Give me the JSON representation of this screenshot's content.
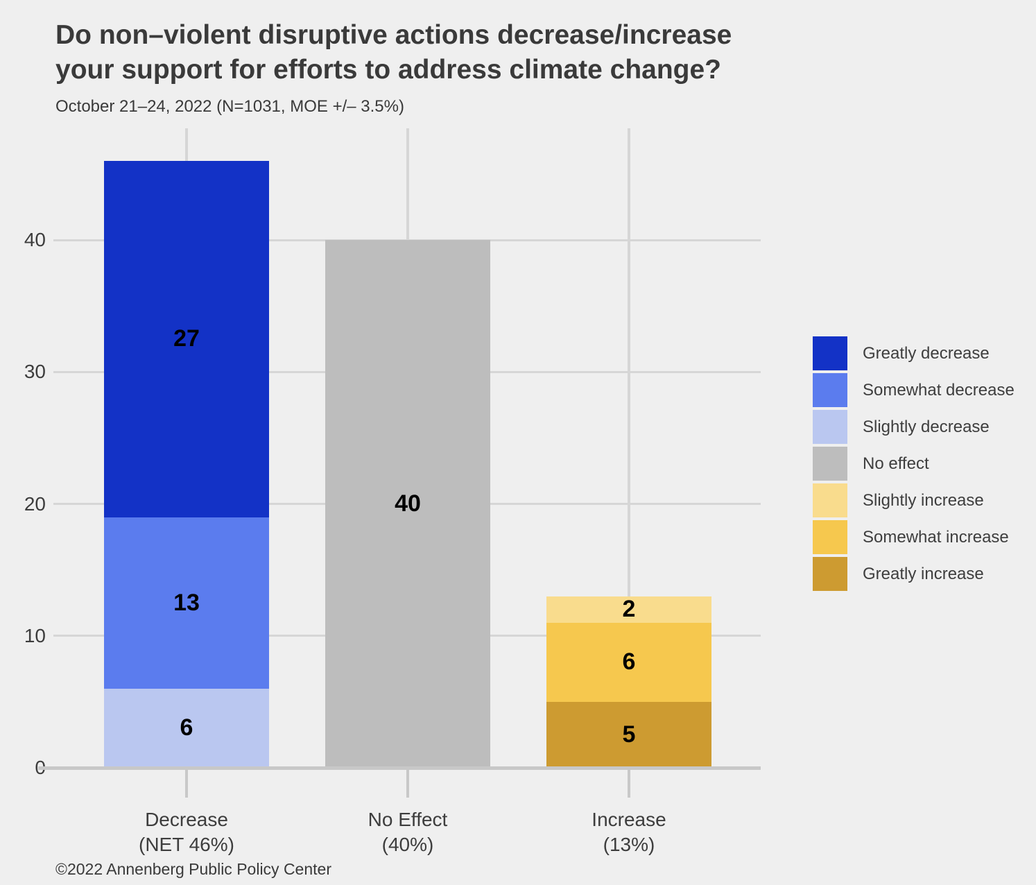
{
  "header": {
    "title": "Do non–violent disruptive actions decrease/increase\nyour support for efforts to address climate change?",
    "subtitle": "October 21–24, 2022 (N=1031, MOE +/– 3.5%)"
  },
  "footer": {
    "credit": "©2022 Annenberg Public Policy Center"
  },
  "chart_data": {
    "type": "bar",
    "stacked": true,
    "title": "Do non–violent disruptive actions decrease/increase your support for efforts to address climate change?",
    "subtitle": "October 21–24, 2022 (N=1031, MOE +/– 3.5%)",
    "categories": [
      "Decrease\n(NET 46%)",
      "No Effect\n(40%)",
      "Increase\n(13%)"
    ],
    "series": [
      {
        "name": "Greatly decrease",
        "color": "#1332C6",
        "values": [
          27,
          0,
          0
        ]
      },
      {
        "name": "Somewhat decrease",
        "color": "#5B7CEE",
        "values": [
          13,
          0,
          0
        ]
      },
      {
        "name": "Slightly decrease",
        "color": "#BAC7F0",
        "values": [
          6,
          0,
          0
        ]
      },
      {
        "name": "No effect",
        "color": "#BDBDBD",
        "values": [
          0,
          40,
          0
        ]
      },
      {
        "name": "Slightly increase",
        "color": "#F9DC8D",
        "values": [
          0,
          0,
          2
        ]
      },
      {
        "name": "Somewhat increase",
        "color": "#F6C84E",
        "values": [
          0,
          0,
          6
        ]
      },
      {
        "name": "Greatly increase",
        "color": "#CD9B31",
        "values": [
          0,
          0,
          5
        ]
      }
    ],
    "xlabel": "",
    "ylabel": "",
    "y_axis": {
      "ticks": [
        0,
        10,
        20,
        30,
        40
      ],
      "lim": [
        0,
        48.5
      ]
    },
    "grid": true,
    "legend_position": "right",
    "layout": {
      "background": "#EFEFEF",
      "gridline_color": "#D6D6D6",
      "axis_line_color": "#C8C8C8"
    }
  }
}
